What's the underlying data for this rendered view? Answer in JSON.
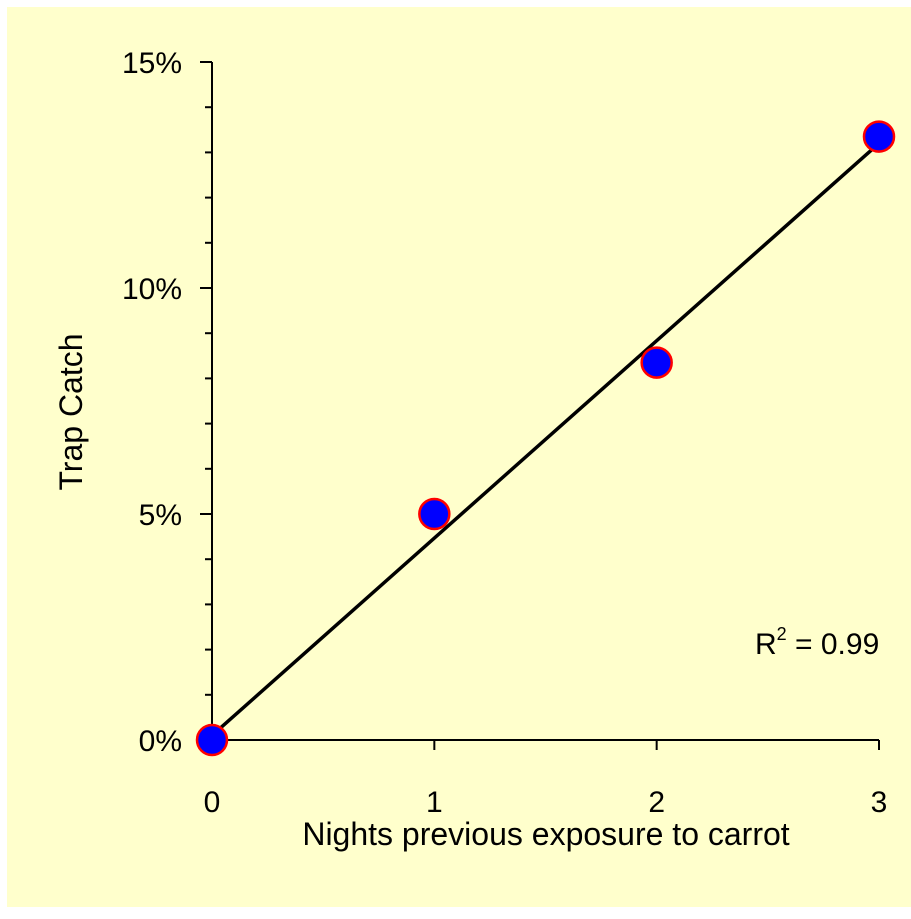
{
  "chart_data": {
    "type": "scatter",
    "title": "",
    "xlabel": "Nights previous exposure to carrot",
    "ylabel": "Trap Catch",
    "x_ticks": [
      0,
      1,
      2,
      3
    ],
    "x_tick_labels": [
      "0",
      "1",
      "2",
      "3"
    ],
    "y_ticks": [
      0,
      5,
      10,
      15
    ],
    "y_tick_labels": [
      "0%",
      "5%",
      "10%",
      "15%"
    ],
    "y_unit": "percent",
    "xlim": [
      0,
      3
    ],
    "ylim": [
      0,
      15
    ],
    "grid": false,
    "legend": "none",
    "series": [
      {
        "x": [
          0,
          1,
          2,
          3
        ],
        "y": [
          0,
          5.0,
          8.35,
          13.35
        ]
      }
    ],
    "trendline": {
      "type": "linear",
      "x": [
        0,
        3
      ],
      "y": [
        0.1,
        13.2
      ]
    },
    "annotation": {
      "r_base": "R",
      "r_exp": "2",
      "r_rest": " = 0.99"
    },
    "colors": {
      "background": "#FFFFCC",
      "marker_fill": "#0000FF",
      "marker_edge": "#FF0000",
      "line": "#000000"
    }
  }
}
